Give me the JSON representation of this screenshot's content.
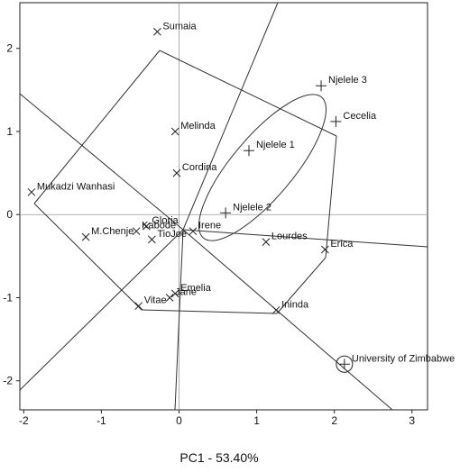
{
  "chart_data": {
    "type": "scatter",
    "title": "",
    "xlabel": "PC1 - 53.40%",
    "ylabel": "",
    "xlim": [
      -2.05,
      3.2
    ],
    "ylim": [
      -2.35,
      2.55
    ],
    "xticks": [
      "-2",
      "-1",
      "0",
      "1",
      "2",
      "3"
    ],
    "yticks": [
      "-2",
      "-1",
      "0",
      "1",
      "2"
    ],
    "grid": false,
    "reference_lines": {
      "x": 0,
      "y": 0
    },
    "colors": {
      "ink": "#222222",
      "reference": "#9a9a9a"
    },
    "entries": [
      {
        "name": "Sumaia",
        "x": -0.28,
        "y": 2.2
      },
      {
        "name": "Melinda",
        "x": -0.05,
        "y": 1.0
      },
      {
        "name": "Cordina",
        "x": -0.03,
        "y": 0.5
      },
      {
        "name": "Mukadzi Wanhasi",
        "x": -1.9,
        "y": 0.27
      },
      {
        "name": "Gloria",
        "x": -0.42,
        "y": -0.14
      },
      {
        "name": "Kabode",
        "x": -0.55,
        "y": -0.2
      },
      {
        "name": "M.Chenje",
        "x": -1.2,
        "y": -0.27
      },
      {
        "name": "TioJoe",
        "x": -0.35,
        "y": -0.3
      },
      {
        "name": "Irene",
        "x": 0.18,
        "y": -0.2
      },
      {
        "name": "Emelia",
        "x": -0.05,
        "y": -0.95
      },
      {
        "name": "Jane",
        "x": -0.12,
        "y": -1.0
      },
      {
        "name": "Vitae",
        "x": -0.52,
        "y": -1.1
      },
      {
        "name": "Lourdes",
        "x": 1.12,
        "y": -0.33
      },
      {
        "name": "Erica",
        "x": 1.88,
        "y": -0.42
      },
      {
        "name": "Ininda",
        "x": 1.25,
        "y": -1.15
      }
    ],
    "environments": [
      {
        "name": "Njelele 3",
        "x": 1.83,
        "y": 1.55
      },
      {
        "name": "Cecelia",
        "x": 2.02,
        "y": 1.12
      },
      {
        "name": "Njelele 1",
        "x": 0.9,
        "y": 0.77
      },
      {
        "name": "Njelele 2",
        "x": 0.6,
        "y": 0.02
      },
      {
        "name": "University of Zimbabwe",
        "x": 2.13,
        "y": -1.8
      }
    ]
  }
}
